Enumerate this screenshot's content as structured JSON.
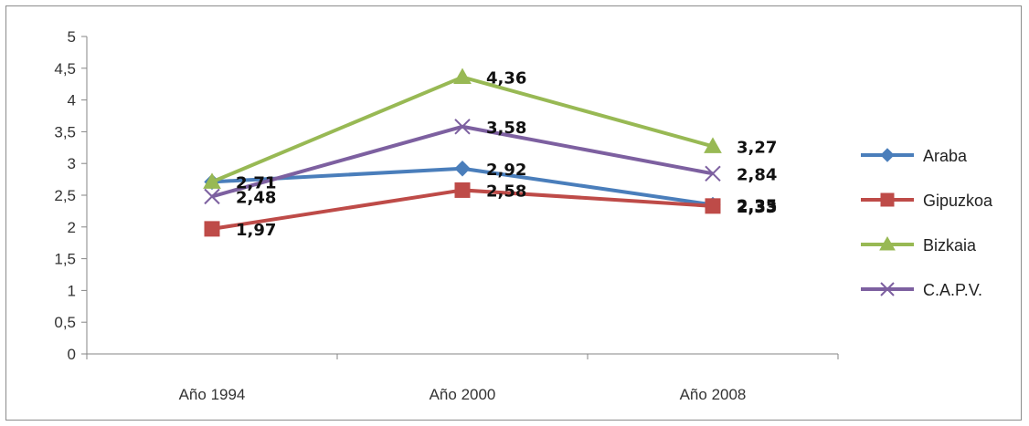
{
  "chart_data": {
    "type": "line",
    "title": "",
    "xlabel": "",
    "ylabel": "",
    "categories": [
      "Año 1994",
      "Año 2000",
      "Año 2008"
    ],
    "ylim": [
      0,
      5
    ],
    "yticks": [
      "0",
      "0,5",
      "1",
      "1,5",
      "2",
      "2,5",
      "3",
      "3,5",
      "4",
      "4,5",
      "5"
    ],
    "ytick_values": [
      0,
      0.5,
      1,
      1.5,
      2,
      2.5,
      3,
      3.5,
      4,
      4.5,
      5
    ],
    "grid": false,
    "legend_position": "right",
    "series": [
      {
        "name": "Araba",
        "color": "#4a7ebb",
        "marker": "diamond",
        "values": [
          2.71,
          2.92,
          2.35
        ],
        "labels": [
          "2,71",
          "2,92",
          "2,35"
        ]
      },
      {
        "name": "Gipuzkoa",
        "color": "#be4b48",
        "marker": "square",
        "values": [
          1.97,
          2.58,
          2.33
        ],
        "labels": [
          "1,97",
          "2,58",
          "2,33"
        ]
      },
      {
        "name": "Bizkaia",
        "color": "#98b954",
        "marker": "triangle",
        "values": [
          2.71,
          4.36,
          3.27
        ],
        "labels": [
          "2,71",
          "4,36",
          "3,27"
        ]
      },
      {
        "name": "C.A.P.V.",
        "color": "#7d60a0",
        "marker": "x",
        "values": [
          2.48,
          3.58,
          2.84
        ],
        "labels": [
          "2,48",
          "3,58",
          "2,84"
        ]
      }
    ]
  }
}
